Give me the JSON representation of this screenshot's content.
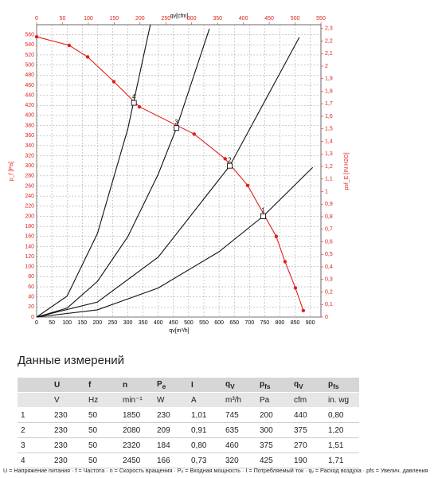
{
  "chart_data": {
    "type": "line",
    "x_label": "qv[m³/h]",
    "x2_label": "qv[cfm]",
    "y_label": "p_f [Pa]",
    "y2_label": "psf_E [IN H2O]",
    "xlim": [
      0,
      935
    ],
    "xticks": [
      0,
      50,
      100,
      150,
      200,
      250,
      300,
      350,
      400,
      450,
      500,
      550,
      600,
      650,
      700,
      750,
      800,
      850,
      900
    ],
    "x2lim": [
      0,
      550
    ],
    "x2ticks": [
      0,
      50,
      100,
      150,
      200,
      250,
      300,
      350,
      400,
      450,
      500,
      550
    ],
    "ylim": [
      0,
      580
    ],
    "yticks": [
      0,
      20,
      40,
      60,
      80,
      100,
      120,
      140,
      160,
      180,
      200,
      220,
      240,
      260,
      280,
      300,
      320,
      340,
      360,
      380,
      400,
      420,
      440,
      460,
      480,
      500,
      520,
      540,
      560
    ],
    "y2lim": [
      0,
      2.33
    ],
    "y2ticks": [
      0,
      {
        "value": 0.1,
        "label": "0,1"
      },
      {
        "value": 0.2,
        "label": "0,2"
      },
      {
        "value": 0.3,
        "label": "0,3"
      },
      {
        "value": 0.4,
        "label": "0,4"
      },
      {
        "value": 0.5,
        "label": "0,5"
      },
      {
        "value": 0.6,
        "label": "0,6"
      },
      {
        "value": 0.7,
        "label": "0,7"
      },
      {
        "value": 0.8,
        "label": "0,8"
      },
      {
        "value": 0.9,
        "label": "0,9"
      },
      1,
      {
        "value": 1.1,
        "label": "1,1"
      },
      {
        "value": 1.2,
        "label": "1,2"
      },
      {
        "value": 1.3,
        "label": "1,3"
      },
      {
        "value": 1.4,
        "label": "1,4"
      },
      {
        "value": 1.5,
        "label": "1,5"
      },
      {
        "value": 1.6,
        "label": "1,6"
      },
      {
        "value": 1.7,
        "label": "1,7"
      },
      {
        "value": 1.8,
        "label": "1,8"
      },
      {
        "value": 1.9,
        "label": "1,9"
      },
      2,
      {
        "value": 2.1,
        "label": "2,1"
      },
      {
        "value": 2.2,
        "label": "2,2"
      },
      {
        "value": 2.3,
        "label": "2,3"
      }
    ],
    "grid": true,
    "series": [
      {
        "color": "#e0201b",
        "markers": true,
        "x": [
          0,
          107,
          168,
          254,
          338,
          518,
          620,
          694,
          788,
          817,
          851,
          877
        ],
        "values": [
          556,
          539,
          516,
          467,
          417,
          363,
          314,
          261,
          160,
          110,
          58,
          13
        ]
      },
      {
        "color": "#111111",
        "x": [
          0,
          200,
          400,
          600,
          745,
          908
        ],
        "values": [
          0,
          14.4,
          57.7,
          129.8,
          200,
          297
        ]
      },
      {
        "color": "#111111",
        "x": [
          0,
          200,
          400,
          635,
          864
        ],
        "values": [
          0,
          29.8,
          119,
          300,
          555
        ]
      },
      {
        "color": "#111111",
        "x": [
          0,
          100,
          200,
          300,
          400,
          460,
          568
        ],
        "values": [
          0,
          17.7,
          70.9,
          159.5,
          283.5,
          375,
          571.8
        ]
      },
      {
        "color": "#111111",
        "x": [
          0,
          100,
          200,
          300,
          374
        ],
        "values": [
          0,
          41.5,
          166,
          373.5,
          580
        ]
      }
    ],
    "operating_points": {
      "labels": [
        "1",
        "2",
        "3",
        "4"
      ],
      "x": [
        745,
        635,
        460,
        320
      ],
      "values": [
        200,
        300,
        375,
        425
      ]
    }
  },
  "heading": "Данные измерений",
  "table": {
    "header": [
      {
        "text": ""
      },
      {
        "text": "U"
      },
      {
        "text": "f"
      },
      {
        "text": "n"
      },
      {
        "text": "P",
        "sub": "e"
      },
      {
        "text": "I"
      },
      {
        "text": "q",
        "sub": "V"
      },
      {
        "text": "p",
        "sub": "fs"
      },
      {
        "text": "q",
        "sub": "V"
      },
      {
        "text": "p",
        "sub": "fs"
      }
    ],
    "units": [
      "",
      "V",
      "Hz",
      "min⁻¹",
      "W",
      "A",
      "m³/h",
      "Pa",
      "cfm",
      "in. wg"
    ],
    "rows": [
      [
        "1",
        "230",
        "50",
        "1850",
        "230",
        "1,01",
        "745",
        "200",
        "440",
        "0,80"
      ],
      [
        "2",
        "230",
        "50",
        "2080",
        "209",
        "0,91",
        "635",
        "300",
        "375",
        "1,20"
      ],
      [
        "3",
        "230",
        "50",
        "2320",
        "184",
        "0,80",
        "460",
        "375",
        "270",
        "1,51"
      ],
      [
        "4",
        "230",
        "50",
        "2450",
        "166",
        "0,73",
        "320",
        "425",
        "190",
        "1,71"
      ]
    ]
  },
  "footnote": "U = Напряжение питания · f = Частота · n = Скорость вращения · Pₑ = Входная мощность · I = Потребляемый ток · qᵥ = Расход воздуха · pfs = Увелич. давления"
}
